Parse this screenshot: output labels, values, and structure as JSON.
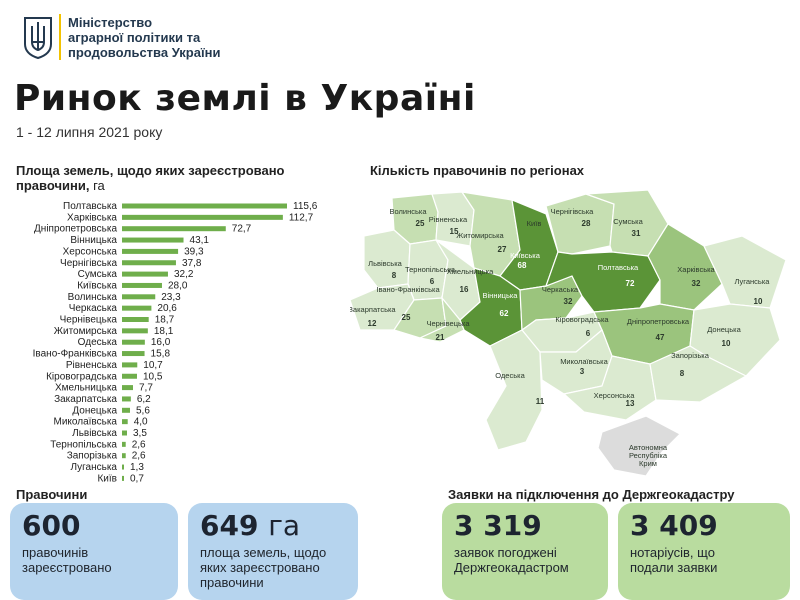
{
  "header": {
    "ministry_lines": [
      "Міністерство",
      "аграрної політики та",
      "продовольства України"
    ],
    "title": "Ринок землі в Україні",
    "subtitle": "1 - 12 липня 2021 року"
  },
  "colors": {
    "bar": "#6fae4b",
    "region_dark": "#5b9437",
    "region_mid": "#9bc47d",
    "region_light": "#c6dfb2",
    "region_pale": "#dbead0",
    "region_grey": "#dcdcdc",
    "card_blue": "#b6d4ee",
    "card_green": "#b9dc9f"
  },
  "chart_data": {
    "type": "bar",
    "orientation": "horizontal",
    "title": "Площа земель, щодо яких зареєстровано правочини,",
    "unit": "га",
    "categories": [
      "Полтавська",
      "Харківська",
      "Дніпропетровська",
      "Вінницька",
      "Херсонська",
      "Чернігівська",
      "Сумська",
      "Київська",
      "Волинська",
      "Черкаська",
      "Чернівецька",
      "Житомирська",
      "Одеська",
      "Івано-Франківська",
      "Рівненська",
      "Кіровоградська",
      "Хмельницька",
      "Закарпатська",
      "Донецька",
      "Миколаївська",
      "Львівська",
      "Тернопільська",
      "Запорізька",
      "Луганська",
      "Київ"
    ],
    "values": [
      115.6,
      112.7,
      72.7,
      43.1,
      39.3,
      37.8,
      32.2,
      28.0,
      23.3,
      20.6,
      18.7,
      18.1,
      16.0,
      15.8,
      10.7,
      10.5,
      7.7,
      6.2,
      5.6,
      4.0,
      3.5,
      2.6,
      2.6,
      1.3,
      0.7
    ],
    "value_labels": [
      "115,6",
      "112,7",
      "72,7",
      "43,1",
      "39,3",
      "37,8",
      "32,2",
      "28,0",
      "23,3",
      "20,6",
      "18,7",
      "18,1",
      "16,0",
      "15,8",
      "10,7",
      "10,5",
      "7,7",
      "6,2",
      "5,6",
      "4,0",
      "3,5",
      "2,6",
      "2,6",
      "1,3",
      "0,7"
    ]
  },
  "map": {
    "title": "Кількість правочинів по регіонах",
    "regions": [
      {
        "name": "Волинська",
        "value": "25",
        "shade": "region_light"
      },
      {
        "name": "Рівненська",
        "value": "15",
        "shade": "region_pale"
      },
      {
        "name": "Житомирська",
        "value": "27",
        "shade": "region_light"
      },
      {
        "name": "Київ",
        "value": "",
        "shade": "region_grey"
      },
      {
        "name": "Київська",
        "value": "68",
        "shade": "region_dark"
      },
      {
        "name": "Чернігівська",
        "value": "28",
        "shade": "region_light"
      },
      {
        "name": "Сумська",
        "value": "31",
        "shade": "region_light"
      },
      {
        "name": "Львівська",
        "value": "8",
        "shade": "region_pale"
      },
      {
        "name": "Тернопільська",
        "value": "6",
        "shade": "region_pale"
      },
      {
        "name": "Хмельницька",
        "value": "16",
        "shade": "region_pale"
      },
      {
        "name": "Вінницька",
        "value": "62",
        "shade": "region_dark"
      },
      {
        "name": "Черкаська",
        "value": "32",
        "shade": "region_mid"
      },
      {
        "name": "Полтавська",
        "value": "72",
        "shade": "region_dark"
      },
      {
        "name": "Харківська",
        "value": "32",
        "shade": "region_mid"
      },
      {
        "name": "Луганська",
        "value": "10",
        "shade": "region_pale"
      },
      {
        "name": "Закарпатська",
        "value": "12",
        "shade": "region_pale"
      },
      {
        "name": "Івано-Франківська",
        "value": "25",
        "shade": "region_light"
      },
      {
        "name": "Чернівецька",
        "value": "21",
        "shade": "region_light"
      },
      {
        "name": "Кіровоградська",
        "value": "6",
        "shade": "region_pale"
      },
      {
        "name": "Дніпропетровська",
        "value": "47",
        "shade": "region_mid"
      },
      {
        "name": "Донецька",
        "value": "10",
        "shade": "region_pale"
      },
      {
        "name": "Одеська",
        "value": "11",
        "shade": "region_pale"
      },
      {
        "name": "Миколаївська",
        "value": "3",
        "shade": "region_pale"
      },
      {
        "name": "Херсонська",
        "value": "13",
        "shade": "region_pale"
      },
      {
        "name": "Запорізька",
        "value": "8",
        "shade": "region_pale"
      },
      {
        "name": "Автономна Республіка Крим",
        "value": "",
        "shade": "region_grey"
      }
    ]
  },
  "summary": {
    "left_label": "Правочини",
    "right_label": "Заявки на підключення до Держгеокадастру",
    "cards": [
      {
        "big": "600",
        "unit": "",
        "desc_lines": [
          "правочинів",
          "зареєстровано"
        ]
      },
      {
        "big": "649",
        "unit": "га",
        "desc_lines": [
          "площа земель, щодо",
          "яких зареєстровано",
          "правочини"
        ]
      },
      {
        "big": "3 319",
        "unit": "",
        "desc_lines": [
          "заявок погоджені",
          "Держгеокадастром"
        ]
      },
      {
        "big": "3 409",
        "unit": "",
        "desc_lines": [
          "нотаріусів, що",
          "подали заявки"
        ]
      }
    ]
  }
}
